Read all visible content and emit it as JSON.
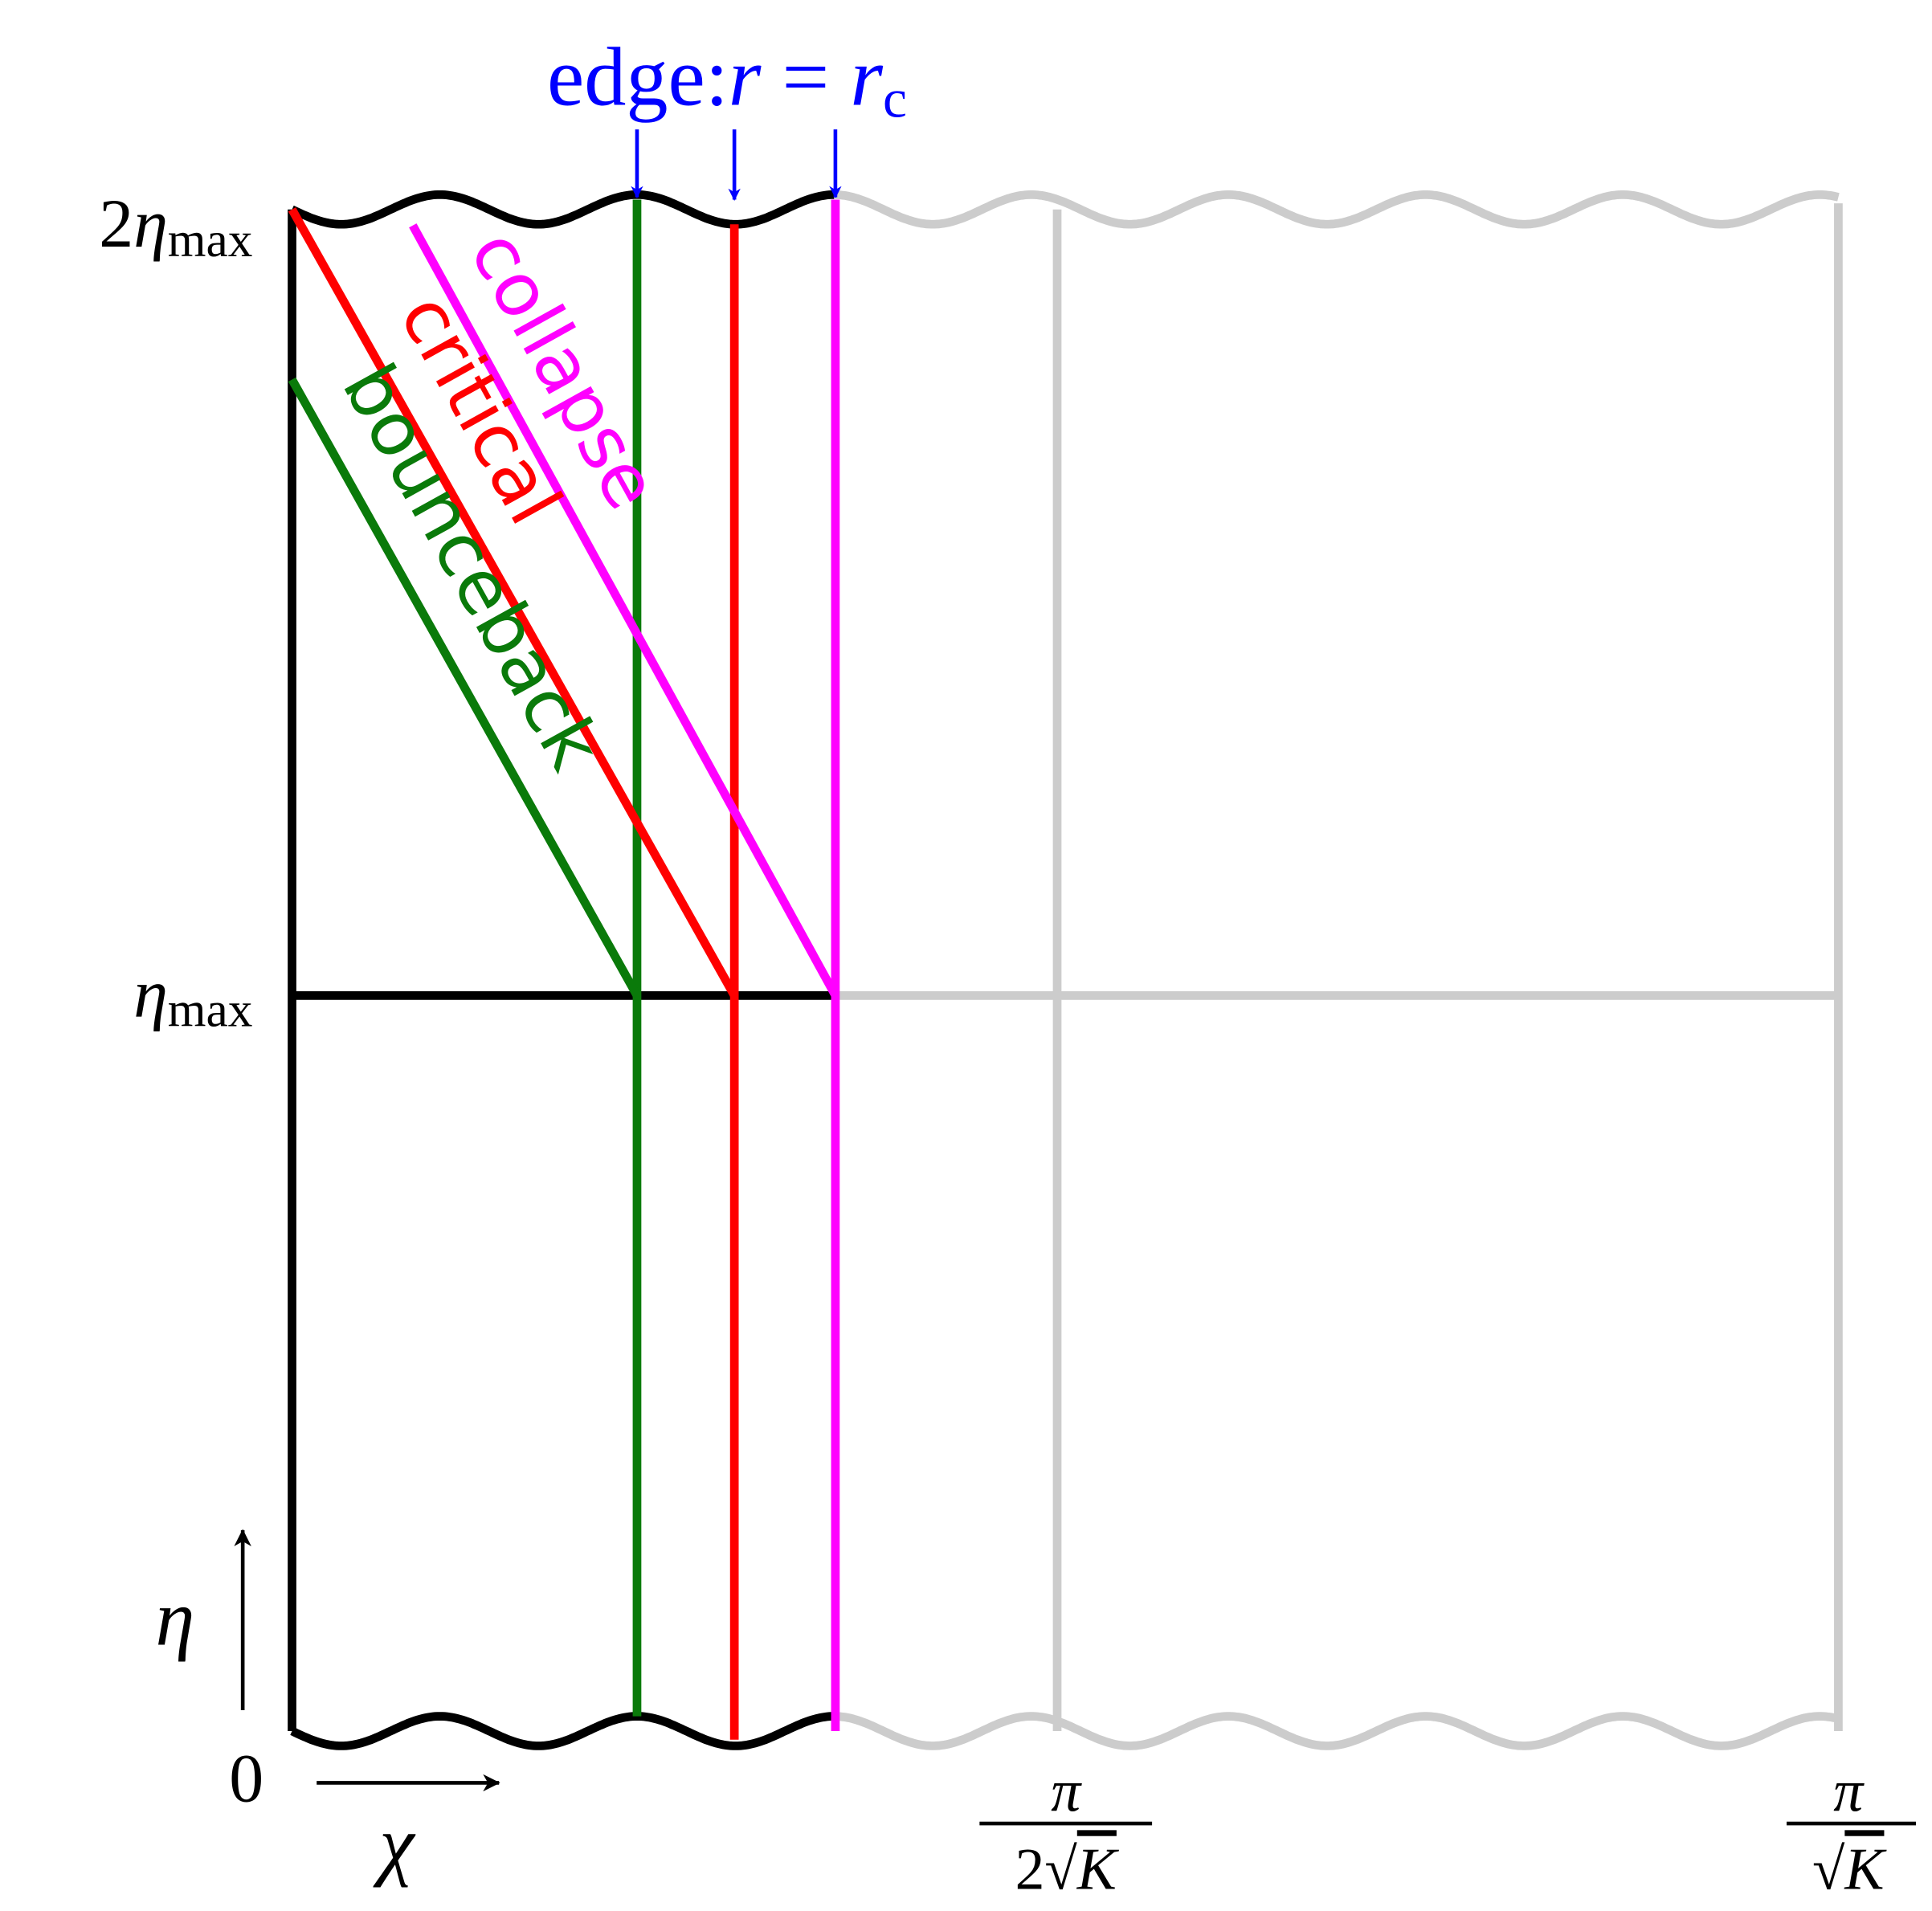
{
  "edge_label": {
    "word": "edge:",
    "var": "r",
    "eq": " = ",
    "rhs": "r",
    "sub": "c"
  },
  "y_labels": {
    "top": {
      "coef": "2",
      "sym": "η",
      "sub": "max"
    },
    "mid": {
      "sym": "η",
      "sub": "max"
    },
    "zero": "0"
  },
  "axes": {
    "eta": "η",
    "chi": "χ"
  },
  "x_labels": {
    "half": {
      "num": "π",
      "coef": "2",
      "root": "√",
      "var": "K"
    },
    "full": {
      "num": "π",
      "root": "√",
      "var": "K"
    }
  },
  "curves": {
    "collapse": "collapse",
    "critical": "critical",
    "bounceback": "bounceback"
  }
}
